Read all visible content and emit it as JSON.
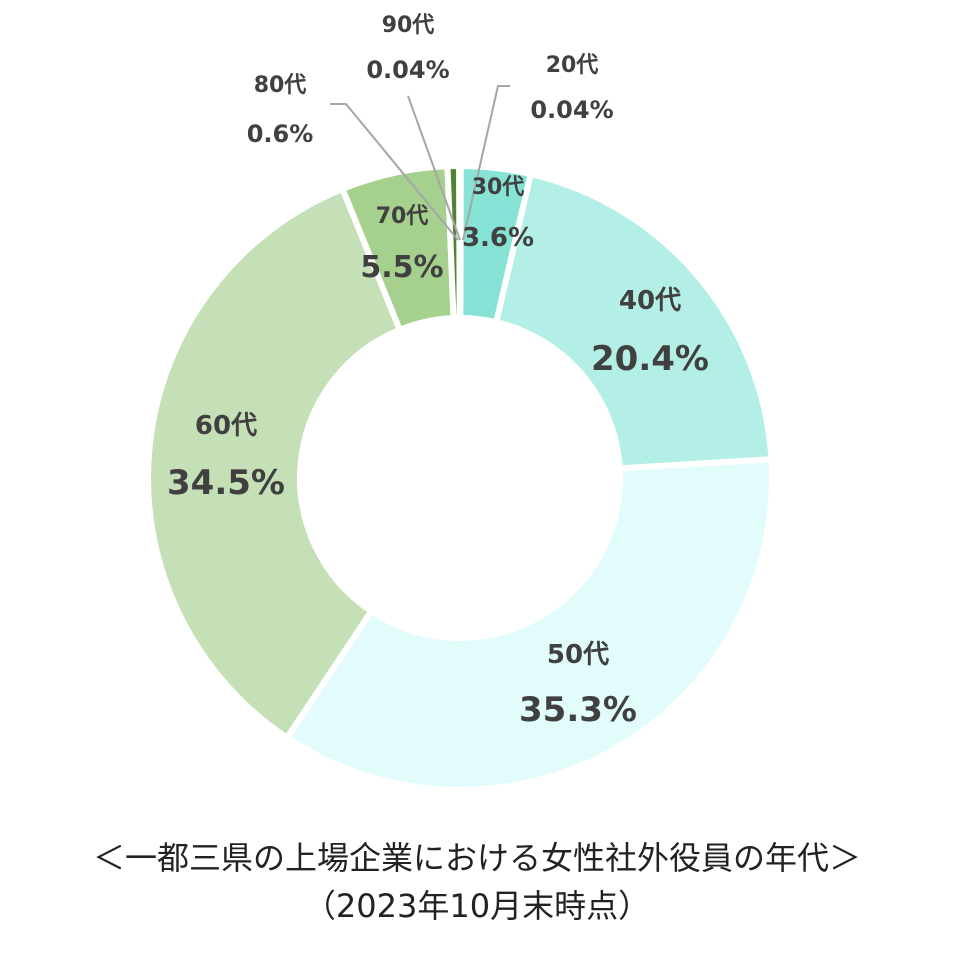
{
  "chart_data": {
    "type": "donut",
    "unit": "%",
    "categories": [
      "20代",
      "30代",
      "40代",
      "50代",
      "60代",
      "70代",
      "80代",
      "90代"
    ],
    "values": [
      0.04,
      3.6,
      20.4,
      35.3,
      34.5,
      5.5,
      0.6,
      0.04
    ],
    "value_labels": [
      "0.04%",
      "3.6%",
      "20.4%",
      "35.3%",
      "34.5%",
      "5.5%",
      "0.6%",
      "0.04%"
    ],
    "colors": [
      "#3f8a3a",
      "#86e3d5",
      "#b3efe6",
      "#e1fcfa",
      "#c5e0b7",
      "#a6d08d",
      "#548235",
      "#548235"
    ],
    "title": "",
    "legend": "none"
  },
  "caption": {
    "title": "＜一都三県の上場企業における女性社外役員の年代＞",
    "date": "（2023年10月末時点）"
  }
}
